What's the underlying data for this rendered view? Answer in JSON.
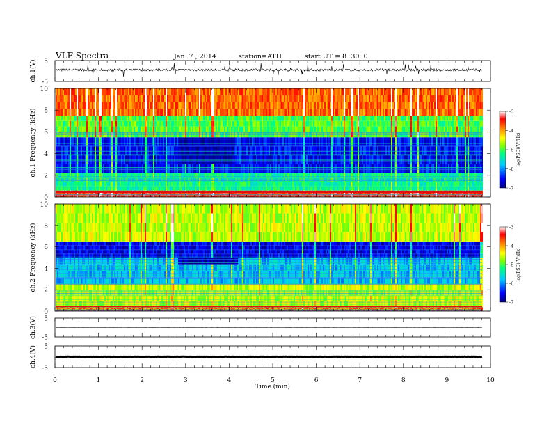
{
  "header": {
    "title": "VLF Spectra",
    "date": "Jan. 7 , 2014",
    "station": "station=ATH",
    "start_ut": "start UT = 8 :30: 0"
  },
  "chart_data": [
    {
      "type": "line",
      "panel": "ch1-waveform",
      "ylabel": "ch.1(V)",
      "ylim": [
        -5,
        5
      ],
      "yticks": [
        "5",
        "-5"
      ],
      "xlim": [
        0,
        10
      ],
      "baseline": 0.5,
      "noise_amplitude": "moderate with frequent spikes"
    },
    {
      "type": "heatmap",
      "panel": "ch1-spectrogram",
      "ylabel": "ch.1 Frequency (kHz)",
      "ylim": [
        0,
        10
      ],
      "yticks": [
        "0",
        "2",
        "4",
        "6",
        "8",
        "10"
      ],
      "xlim": [
        0,
        9.8
      ],
      "colorbar": {
        "label": "log(PSD)(V²/Hz)",
        "range": [
          -7,
          -3
        ],
        "ticks": [
          "-3",
          "-4",
          "-5",
          "-6",
          "-7"
        ],
        "colors": [
          "#000080",
          "#0000ff",
          "#00c8ff",
          "#00ff80",
          "#80ff00",
          "#ffff00",
          "#ff8000",
          "#ff0000",
          "#ffffff"
        ]
      },
      "bands": [
        {
          "from": 0,
          "to": 0.6,
          "level": -3.5
        },
        {
          "from": 0.6,
          "to": 2.2,
          "level": -5.3
        },
        {
          "from": 2.2,
          "to": 5.5,
          "level": -6.5
        },
        {
          "from": 5.5,
          "to": 7.5,
          "level": -5.0
        },
        {
          "from": 7.5,
          "to": 10,
          "level": -3.8
        }
      ],
      "quiet_region": {
        "t_from": 2.8,
        "t_to": 4.1,
        "f_from": 3,
        "f_to": 5.5,
        "level": -7
      }
    },
    {
      "type": "heatmap",
      "panel": "ch2-spectrogram",
      "ylabel": "ch.2 Frequency (kHz)",
      "ylim": [
        0,
        10
      ],
      "yticks": [
        "0",
        "2",
        "4",
        "6",
        "8",
        "10"
      ],
      "xlim": [
        0,
        9.8
      ],
      "colorbar": {
        "label": "log(PSD)(V²/Hz)",
        "range": [
          -7,
          -3
        ],
        "ticks": [
          "-3",
          "-4",
          "-5",
          "-6",
          "-7"
        ],
        "colors": [
          "#000080",
          "#0000ff",
          "#00c8ff",
          "#00ff80",
          "#80ff00",
          "#ffff00",
          "#ff8000",
          "#ff0000",
          "#ffffff"
        ]
      },
      "bands": [
        {
          "from": 0,
          "to": 0.4,
          "level": -3.8
        },
        {
          "from": 0.4,
          "to": 2.5,
          "level": -4.6
        },
        {
          "from": 2.5,
          "to": 5.0,
          "level": -5.8
        },
        {
          "from": 5.0,
          "to": 6.5,
          "level": -6.6
        },
        {
          "from": 6.5,
          "to": 10,
          "level": -4.6
        }
      ],
      "quiet_region": {
        "t_from": 2.8,
        "t_to": 4.2,
        "f_from": 3.8,
        "f_to": 5.0,
        "level": -7
      }
    },
    {
      "type": "line",
      "panel": "ch3-waveform",
      "ylabel": "ch.3(V)",
      "ylim": [
        -5,
        5
      ],
      "yticks": [
        "5",
        "-5"
      ],
      "xlim": [
        0,
        10
      ],
      "baseline": 0,
      "noise_amplitude": "low"
    },
    {
      "type": "line",
      "panel": "ch4-waveform",
      "ylabel": "ch.4(V)",
      "ylim": [
        -5,
        5
      ],
      "yticks": [
        "5",
        "-5"
      ],
      "xlim": [
        0,
        10
      ],
      "baseline": 0,
      "noise_amplitude": "very low, thick line"
    }
  ],
  "xaxis": {
    "label": "Time (min)",
    "ticks": [
      "0",
      "1",
      "2",
      "3",
      "4",
      "5",
      "6",
      "7",
      "8",
      "9",
      "10"
    ],
    "range": [
      0,
      10
    ]
  }
}
